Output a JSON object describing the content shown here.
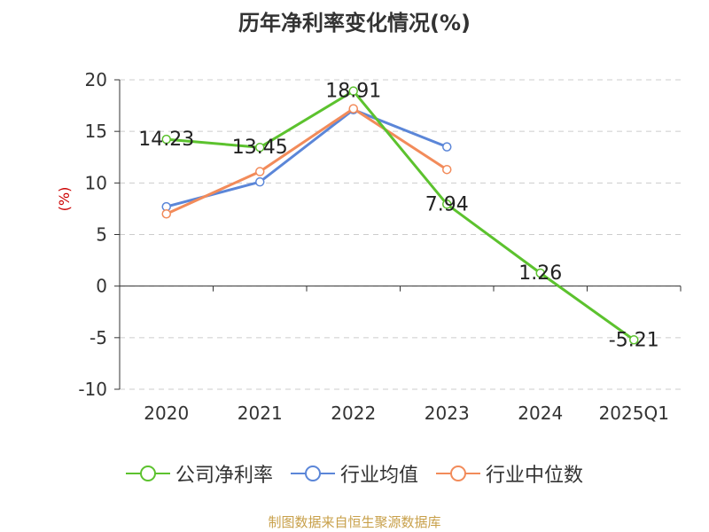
{
  "chart_data": {
    "type": "line",
    "title": "历年净利率变化情况(%)",
    "ylabel": "(%)",
    "categories": [
      "2020",
      "2021",
      "2022",
      "2023",
      "2024",
      "2025Q1"
    ],
    "ylim": [
      -10,
      20
    ],
    "yticks": [
      20,
      15,
      10,
      5,
      0,
      -5,
      -10
    ],
    "grid": true,
    "legend_position": "bottom",
    "series": [
      {
        "name": "公司净利率",
        "color": "#5cc22e",
        "values": [
          14.23,
          13.45,
          18.91,
          7.94,
          1.26,
          -5.21
        ],
        "labels": [
          "14.23",
          "13.45",
          "18.91",
          "7.94",
          "1.26",
          "-5.21"
        ]
      },
      {
        "name": "行业均值",
        "color": "#5b86d8",
        "values": [
          7.7,
          10.1,
          17.1,
          13.5,
          null,
          null
        ]
      },
      {
        "name": "行业中位数",
        "color": "#f28b5a",
        "values": [
          7.0,
          11.1,
          17.2,
          11.3,
          null,
          null
        ]
      }
    ],
    "source": "制图数据来自恒生聚源数据库"
  }
}
